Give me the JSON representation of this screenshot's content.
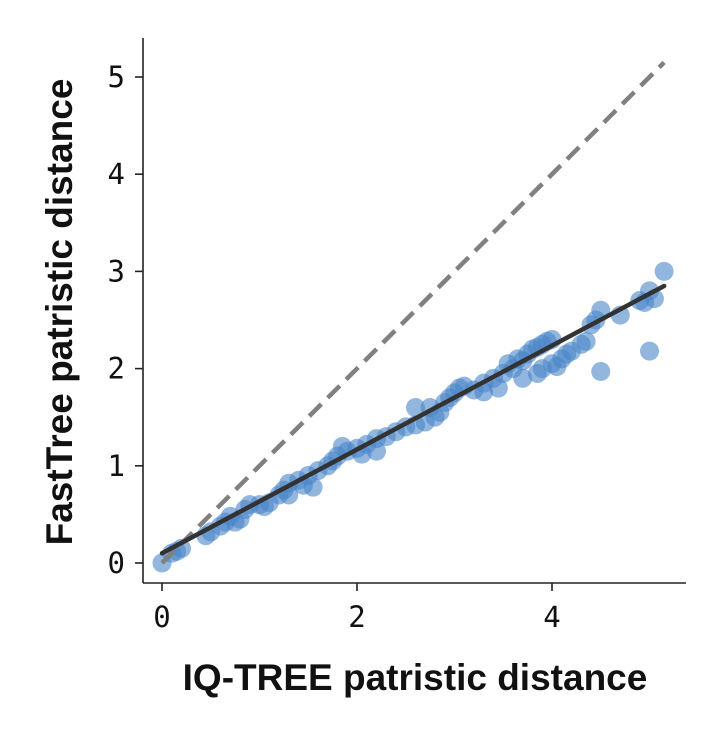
{
  "chart_data": {
    "type": "scatter",
    "title": "",
    "xlabel": "IQ-TREE patristic distance",
    "ylabel": "FastTree patristic distance",
    "xlim": [
      -0.2,
      5.35
    ],
    "ylim": [
      -0.2,
      5.4
    ],
    "xticks": [
      0,
      2,
      4
    ],
    "yticks": [
      0,
      1,
      2,
      3,
      4,
      5
    ],
    "grid": false,
    "point_color": "#4a86c8",
    "fit_line": {
      "x": [
        0,
        5.15
      ],
      "y": [
        0.1,
        2.85
      ],
      "color": "#333333",
      "style": "solid"
    },
    "identity_line": {
      "x": [
        0,
        5.15
      ],
      "y": [
        0,
        5.15
      ],
      "color": "#808080",
      "style": "dashed"
    },
    "points": [
      [
        0,
        0
      ],
      [
        0.1,
        0.1
      ],
      [
        0.15,
        0.12
      ],
      [
        0.2,
        0.15
      ],
      [
        0.45,
        0.28
      ],
      [
        0.5,
        0.32
      ],
      [
        0.6,
        0.38
      ],
      [
        0.65,
        0.42
      ],
      [
        0.7,
        0.48
      ],
      [
        0.8,
        0.45
      ],
      [
        0.85,
        0.55
      ],
      [
        0.9,
        0.6
      ],
      [
        1.0,
        0.6
      ],
      [
        1.05,
        0.58
      ],
      [
        1.1,
        0.62
      ],
      [
        1.2,
        0.7
      ],
      [
        1.25,
        0.75
      ],
      [
        1.3,
        0.82
      ],
      [
        1.4,
        0.85
      ],
      [
        1.45,
        0.8
      ],
      [
        1.5,
        0.9
      ],
      [
        1.6,
        0.95
      ],
      [
        1.7,
        1.0
      ],
      [
        1.75,
        1.05
      ],
      [
        1.8,
        1.1
      ],
      [
        1.85,
        1.2
      ],
      [
        1.9,
        1.15
      ],
      [
        2.0,
        1.18
      ],
      [
        2.05,
        1.12
      ],
      [
        2.1,
        1.22
      ],
      [
        2.2,
        1.28
      ],
      [
        2.3,
        1.3
      ],
      [
        2.4,
        1.35
      ],
      [
        2.5,
        1.4
      ],
      [
        2.6,
        1.42
      ],
      [
        2.7,
        1.45
      ],
      [
        2.75,
        1.6
      ],
      [
        2.8,
        1.5
      ],
      [
        2.85,
        1.55
      ],
      [
        2.9,
        1.65
      ],
      [
        2.95,
        1.7
      ],
      [
        3.0,
        1.75
      ],
      [
        3.05,
        1.8
      ],
      [
        3.1,
        1.82
      ],
      [
        3.2,
        1.78
      ],
      [
        3.3,
        1.85
      ],
      [
        3.4,
        1.9
      ],
      [
        3.5,
        1.95
      ],
      [
        3.55,
        2.05
      ],
      [
        3.6,
        2.0
      ],
      [
        3.65,
        2.1
      ],
      [
        3.7,
        2.08
      ],
      [
        3.75,
        2.15
      ],
      [
        3.8,
        2.2
      ],
      [
        3.85,
        2.22
      ],
      [
        3.9,
        2.25
      ],
      [
        3.95,
        2.28
      ],
      [
        4.0,
        2.3
      ],
      [
        3.7,
        1.9
      ],
      [
        3.85,
        1.95
      ],
      [
        4.0,
        2.05
      ],
      [
        4.1,
        2.1
      ],
      [
        4.15,
        2.15
      ],
      [
        4.3,
        2.25
      ],
      [
        4.4,
        2.45
      ],
      [
        4.5,
        2.6
      ],
      [
        4.5,
        1.97
      ],
      [
        4.7,
        2.55
      ],
      [
        4.9,
        2.7
      ],
      [
        5.0,
        2.8
      ],
      [
        5.0,
        2.18
      ],
      [
        5.15,
        3.0
      ],
      [
        3.3,
        1.76
      ],
      [
        2.6,
        1.6
      ],
      [
        1.3,
        0.7
      ],
      [
        0.75,
        0.42
      ],
      [
        1.55,
        0.78
      ],
      [
        2.2,
        1.15
      ],
      [
        3.45,
        1.8
      ],
      [
        4.05,
        2.02
      ],
      [
        4.35,
        2.28
      ],
      [
        4.95,
        2.68
      ],
      [
        5.05,
        2.72
      ],
      [
        4.45,
        2.5
      ],
      [
        3.9,
        2.0
      ],
      [
        4.2,
        2.18
      ]
    ]
  }
}
